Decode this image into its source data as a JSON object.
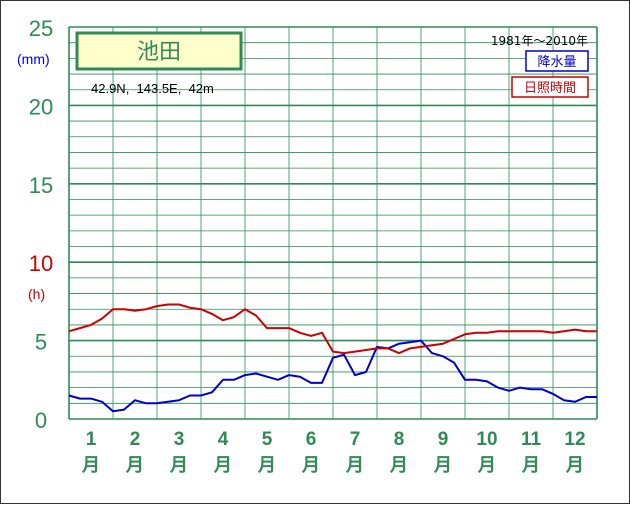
{
  "chart_data": {
    "type": "line",
    "station": "池田",
    "location": "42.9N,  143.5E,  42m",
    "period": "1981年〜2010年",
    "legend": [
      "降水量",
      "日照時間"
    ],
    "units": {
      "precip": "(mm)",
      "sun": "(h)"
    },
    "ylim": [
      0,
      25
    ],
    "y_ticks": [
      "0",
      "5",
      "10",
      "15",
      "20",
      "25"
    ],
    "months": [
      "1",
      "2",
      "3",
      "4",
      "5",
      "6",
      "7",
      "8",
      "9",
      "10",
      "11",
      "12"
    ],
    "month_suffix": "月",
    "x_range": [
      0.5,
      12.5
    ],
    "series": [
      {
        "name": "降水量",
        "color": "#0000cc",
        "x": [
          0.5,
          0.75,
          1.0,
          1.25,
          1.5,
          1.75,
          2.0,
          2.25,
          2.5,
          2.75,
          3.0,
          3.25,
          3.5,
          3.75,
          4.0,
          4.25,
          4.5,
          4.75,
          5.0,
          5.25,
          5.5,
          5.75,
          6.0,
          6.25,
          6.5,
          6.75,
          7.0,
          7.25,
          7.5,
          7.75,
          8.0,
          8.25,
          8.5,
          8.75,
          9.0,
          9.25,
          9.5,
          9.75,
          10.0,
          10.25,
          10.5,
          10.75,
          11.0,
          11.25,
          11.5,
          11.75,
          12.0,
          12.25,
          12.5
        ],
        "values": [
          1.5,
          1.3,
          1.3,
          1.1,
          0.5,
          0.6,
          1.2,
          1.0,
          1.0,
          1.1,
          1.2,
          1.5,
          1.5,
          1.7,
          2.5,
          2.5,
          2.8,
          2.9,
          2.7,
          2.5,
          2.8,
          2.7,
          2.3,
          2.3,
          3.9,
          4.1,
          2.8,
          3.0,
          4.6,
          4.5,
          4.8,
          4.9,
          5.0,
          4.2,
          4.0,
          3.6,
          2.5,
          2.5,
          2.4,
          2.0,
          1.8,
          2.0,
          1.9,
          1.9,
          1.6,
          1.2,
          1.1,
          1.4,
          1.4
        ]
      },
      {
        "name": "日照時間",
        "color": "#cc0000",
        "x": [
          0.5,
          0.75,
          1.0,
          1.25,
          1.5,
          1.75,
          2.0,
          2.25,
          2.5,
          2.75,
          3.0,
          3.25,
          3.5,
          3.75,
          4.0,
          4.25,
          4.5,
          4.75,
          5.0,
          5.25,
          5.5,
          5.75,
          6.0,
          6.25,
          6.5,
          6.75,
          7.0,
          7.25,
          7.5,
          7.75,
          8.0,
          8.25,
          8.5,
          8.75,
          9.0,
          9.25,
          9.5,
          9.75,
          10.0,
          10.25,
          10.5,
          10.75,
          11.0,
          11.25,
          11.5,
          11.75,
          12.0,
          12.25,
          12.5
        ],
        "values": [
          5.6,
          5.8,
          6.0,
          6.4,
          7.0,
          7.0,
          6.9,
          7.0,
          7.2,
          7.3,
          7.3,
          7.1,
          7.0,
          6.7,
          6.3,
          6.5,
          7.0,
          6.6,
          5.8,
          5.8,
          5.8,
          5.5,
          5.3,
          5.5,
          4.3,
          4.2,
          4.3,
          4.4,
          4.5,
          4.5,
          4.2,
          4.5,
          4.6,
          4.7,
          4.8,
          5.1,
          5.4,
          5.5,
          5.5,
          5.6,
          5.6,
          5.6,
          5.6,
          5.6,
          5.5,
          5.6,
          5.7,
          5.6,
          5.6
        ]
      }
    ],
    "colors": {
      "grid": "#2e8b57",
      "axis_text": "#2e8b57",
      "unit_text": "#0000cc",
      "h_unit_text": "#cc0000",
      "title_bg": "#ffffcc"
    }
  }
}
